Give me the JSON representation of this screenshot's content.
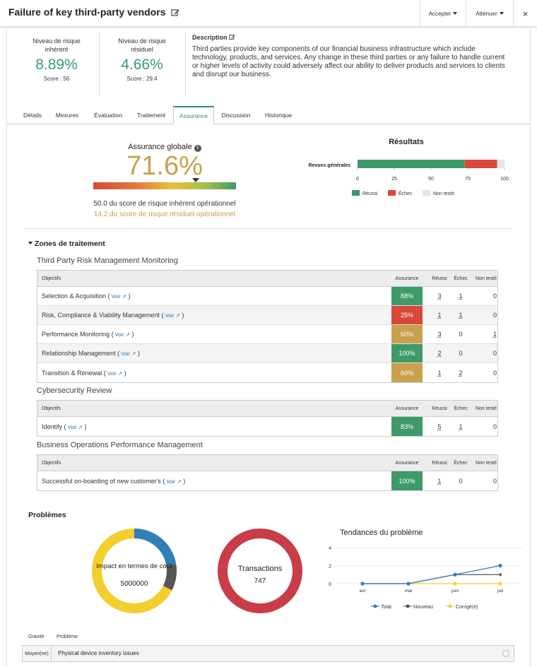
{
  "header": {
    "title": "Failure of key third-party vendors",
    "accept_label": "Accepter",
    "attenuate_label": "Atténuer",
    "close_label": "×"
  },
  "risk": {
    "inherent": {
      "label_line1": "Niveau de risque",
      "label_line2": "inhérent",
      "value": "8.89%",
      "score": "Score : 56"
    },
    "residual": {
      "label_line1": "Niveau de risque",
      "label_line2": "résiduel",
      "value": "4.66%",
      "score": "Score : 29.4"
    }
  },
  "description": {
    "title": "Description",
    "text": "Third parties provide key components of our financial business infrastructure which include technology, products, and services. Any change in these third parties or any failure to handle current or higher levels of activity could adversely affect our ability to deliver products and services to clients and disrupt our business."
  },
  "tabs": [
    "Détails",
    "Mesures",
    "Évaluation",
    "Traitement",
    "Assurance",
    "Discussion",
    "Historique"
  ],
  "active_tab": "Assurance",
  "assurance": {
    "title": "Assurance globale",
    "value": "71.6%",
    "value_fraction": 0.716,
    "line1": "50.0 du score de risque inhérent opérationnel",
    "line2": "14.2 du score de risque résiduel opérationnel"
  },
  "results": {
    "title": "Résultats",
    "chart_data": {
      "type": "bar",
      "orientation": "horizontal",
      "stacked": true,
      "categories": [
        "Revues générales"
      ],
      "series": [
        {
          "name": "Réussi",
          "values": [
            73
          ],
          "color": "#3f9a6a"
        },
        {
          "name": "Échec",
          "values": [
            22
          ],
          "color": "#d9483b"
        },
        {
          "name": "Non testé",
          "values": [
            5
          ],
          "color": "#e4e4e4"
        }
      ],
      "xlim": [
        0,
        100
      ],
      "xticks": [
        "0",
        "25",
        "50",
        "75",
        "100"
      ],
      "legend": "bottom"
    }
  },
  "zones": {
    "title": "Zones de traitement",
    "columns": {
      "obj": "Objectifs",
      "assurance": "Assurance",
      "reussi": "Réussi",
      "echec": "Échec",
      "non_teste": "Non testé"
    },
    "voir_label": "Voir",
    "groups": [
      {
        "name": "Third Party Risk Management Monitoring",
        "rows": [
          {
            "obj": "Selection & Acquisition",
            "assurance": "88%",
            "color": "#3f9a6a",
            "reussi": "3",
            "echec": "1",
            "non_teste": "0"
          },
          {
            "obj": "Risk, Compliance & Viability Management",
            "assurance": "25%",
            "color": "#d9483b",
            "reussi": "1",
            "echec": "1",
            "non_teste": "0"
          },
          {
            "obj": "Performance Monitoring",
            "assurance": "60%",
            "color": "#c9a04d",
            "reussi": "3",
            "echec": "0",
            "non_teste": "1"
          },
          {
            "obj": "Relationship Management",
            "assurance": "100%",
            "color": "#3f9a6a",
            "reussi": "2",
            "echec": "0",
            "non_teste": "0"
          },
          {
            "obj": "Transition & Renewal",
            "assurance": "60%",
            "color": "#c9a04d",
            "reussi": "1",
            "echec": "2",
            "non_teste": "0"
          }
        ]
      },
      {
        "name": "Cybersecurity Review",
        "rows": [
          {
            "obj": "Identify",
            "assurance": "83%",
            "color": "#3f9a6a",
            "reussi": "5",
            "echec": "1",
            "non_teste": "0"
          }
        ]
      },
      {
        "name": "Business Operations Performance Management",
        "rows": [
          {
            "obj": "Successful on-boarding of new customer's",
            "assurance": "100%",
            "color": "#3f9a6a",
            "reussi": "1",
            "echec": "0",
            "non_teste": "0"
          }
        ]
      }
    ]
  },
  "problems": {
    "title": "Problèmes",
    "donut1": {
      "label": "Impact en termes de coût",
      "value": "5000000"
    },
    "donut2": {
      "label": "Transactions",
      "value": "747"
    },
    "trend": {
      "title": "Tendances du problème",
      "chart_data": {
        "type": "line",
        "x": [
          "avr",
          "mai",
          "juin",
          "juil"
        ],
        "series": [
          {
            "name": "Total",
            "values": [
              0,
              0,
              1,
              2
            ],
            "color": "#2f7fb8"
          },
          {
            "name": "Nouveau",
            "values": [
              0,
              0,
              1,
              1
            ],
            "color": "#555555"
          },
          {
            "name": "Corrigé(e)",
            "values": [
              0,
              0,
              0,
              0
            ],
            "color": "#f2cf2e"
          }
        ],
        "ylim": [
          0,
          4
        ],
        "yticks": [
          "0",
          "2",
          "4"
        ],
        "legend": "bottom"
      }
    },
    "table": {
      "col_gravite": "Gravité",
      "col_probleme": "Problème",
      "rows": [
        {
          "gravite": "Moyen(ne)",
          "probleme": "Physical device inventory issues"
        }
      ]
    }
  }
}
